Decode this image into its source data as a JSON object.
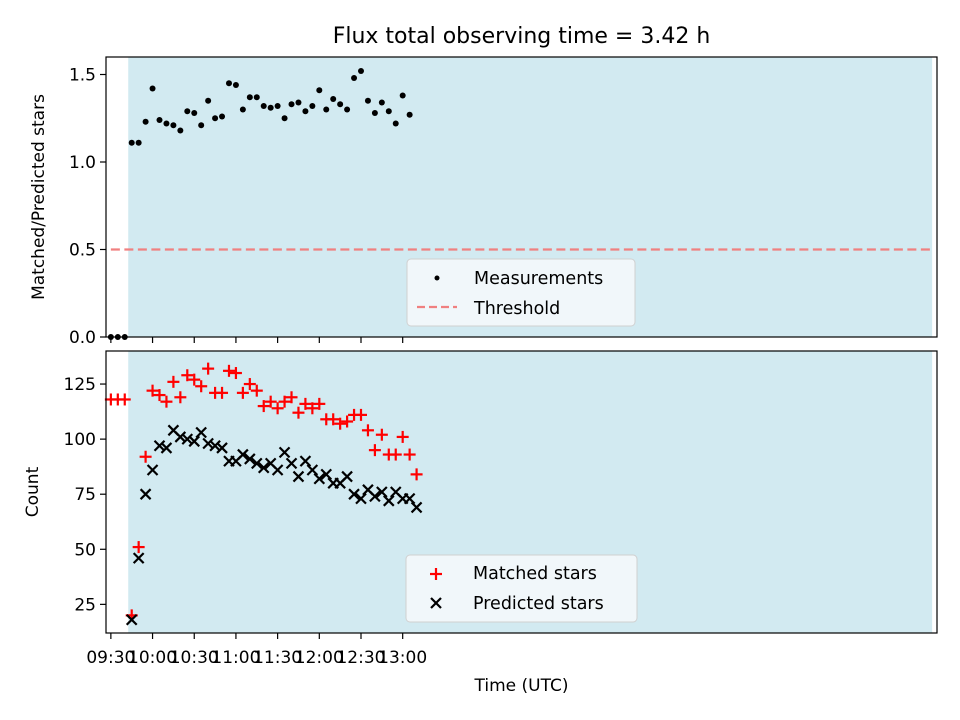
{
  "chart_data": [
    {
      "type": "scatter",
      "title": "Flux total observing time = 3.42 h",
      "xlabel": "",
      "ylabel": "Matched/Predicted stars",
      "xlim": [
        566.5,
        1164.5
      ],
      "ylim": [
        0,
        1.6
      ],
      "yticks": [
        0.0,
        0.5,
        1.0,
        1.5
      ],
      "ytick_labels": [
        "0.0",
        "0.5",
        "1.0",
        "1.5"
      ],
      "xticks": [
        570,
        600,
        630,
        660,
        690,
        720,
        750,
        780,
        810,
        840,
        870,
        900,
        930,
        960,
        990,
        1020,
        1050,
        1080,
        1110,
        1140,
        1170
      ],
      "shaded_span": [
        582.5,
        1161
      ],
      "shade_color": "#add8e6",
      "threshold": {
        "label": "Threshold",
        "value": 0.5,
        "x_start": 570,
        "x_end": 1161,
        "color": "#f08080"
      },
      "series": [
        {
          "name": "Measurements",
          "marker": "dot",
          "color": "#000000",
          "x": [
            570,
            575,
            580,
            585,
            590,
            595,
            600,
            605,
            610,
            615,
            620,
            625,
            630,
            635,
            640,
            645,
            650,
            655,
            660,
            665,
            670,
            675,
            680,
            685,
            690,
            695,
            700,
            705,
            710,
            715,
            720,
            725,
            730,
            735,
            740,
            745,
            750,
            755,
            760,
            765,
            770,
            775,
            780,
            785
          ],
          "y": [
            0,
            0,
            0,
            1.11,
            1.11,
            1.23,
            1.42,
            1.24,
            1.22,
            1.21,
            1.18,
            1.29,
            1.28,
            1.21,
            1.35,
            1.25,
            1.26,
            1.45,
            1.44,
            1.3,
            1.37,
            1.37,
            1.32,
            1.31,
            1.32,
            1.25,
            1.33,
            1.34,
            1.29,
            1.32,
            1.41,
            1.3,
            1.36,
            1.33,
            1.3,
            1.48,
            1.52,
            1.35,
            1.28,
            1.34,
            1.29,
            1.22,
            1.38,
            1.27
          ]
        }
      ],
      "legend": {
        "placement": "lower-center",
        "entries": [
          "Measurements",
          "Threshold"
        ]
      }
    },
    {
      "type": "scatter",
      "title": "",
      "xlabel": "Time (UTC)",
      "ylabel": "Count",
      "xlim": [
        566.5,
        1164.5
      ],
      "ylim": [
        12,
        140
      ],
      "yticks": [
        25,
        50,
        75,
        100,
        125
      ],
      "ytick_labels": [
        "25",
        "50",
        "75",
        "100",
        "125"
      ],
      "xticks": [
        570,
        600,
        630,
        660,
        690,
        720,
        750,
        780
      ],
      "xtick_labels": [
        "09:30",
        "10:00",
        "10:30",
        "11:00",
        "11:30",
        "12:00",
        "12:30",
        "13:00"
      ],
      "shaded_span": [
        582.5,
        1161
      ],
      "shade_color": "#add8e6",
      "series": [
        {
          "name": "Matched stars",
          "marker": "plus",
          "color": "#ff0000",
          "x": [
            570,
            575,
            580,
            585,
            590,
            595,
            600,
            605,
            610,
            615,
            620,
            625,
            630,
            635,
            640,
            645,
            650,
            655,
            660,
            665,
            670,
            675,
            680,
            685,
            690,
            695,
            700,
            705,
            710,
            715,
            720,
            725,
            730,
            735,
            740,
            745,
            750,
            755,
            760,
            765,
            770,
            775,
            780,
            785,
            790
          ],
          "y": [
            118,
            118,
            118,
            20,
            51,
            92,
            122,
            120,
            117,
            126,
            119,
            129,
            127,
            124,
            132,
            121,
            121,
            131,
            130,
            121,
            125,
            122,
            115,
            117,
            114,
            117,
            119,
            112,
            116,
            114,
            116,
            109,
            109,
            107,
            108,
            111,
            111,
            104,
            95,
            102,
            93,
            93,
            101,
            93,
            84
          ]
        },
        {
          "name": "Predicted stars",
          "marker": "x",
          "color": "#000000",
          "x": [
            585,
            590,
            595,
            600,
            605,
            610,
            615,
            620,
            625,
            630,
            635,
            640,
            645,
            650,
            655,
            660,
            665,
            670,
            675,
            680,
            685,
            690,
            695,
            700,
            705,
            710,
            715,
            720,
            725,
            730,
            735,
            740,
            745,
            750,
            755,
            760,
            765,
            770,
            775,
            780,
            785,
            790
          ],
          "y": [
            18,
            46,
            75,
            86,
            97,
            96,
            104,
            101,
            100,
            99,
            103,
            98,
            97,
            96,
            90,
            90,
            93,
            91,
            89,
            87,
            89,
            86,
            94,
            89,
            83,
            90,
            86,
            82,
            84,
            80,
            80,
            83,
            75,
            73,
            77,
            74,
            76,
            72,
            76,
            73,
            73,
            69
          ]
        }
      ],
      "legend": {
        "placement": "lower-center",
        "entries": [
          "Matched stars",
          "Predicted stars"
        ]
      }
    }
  ]
}
